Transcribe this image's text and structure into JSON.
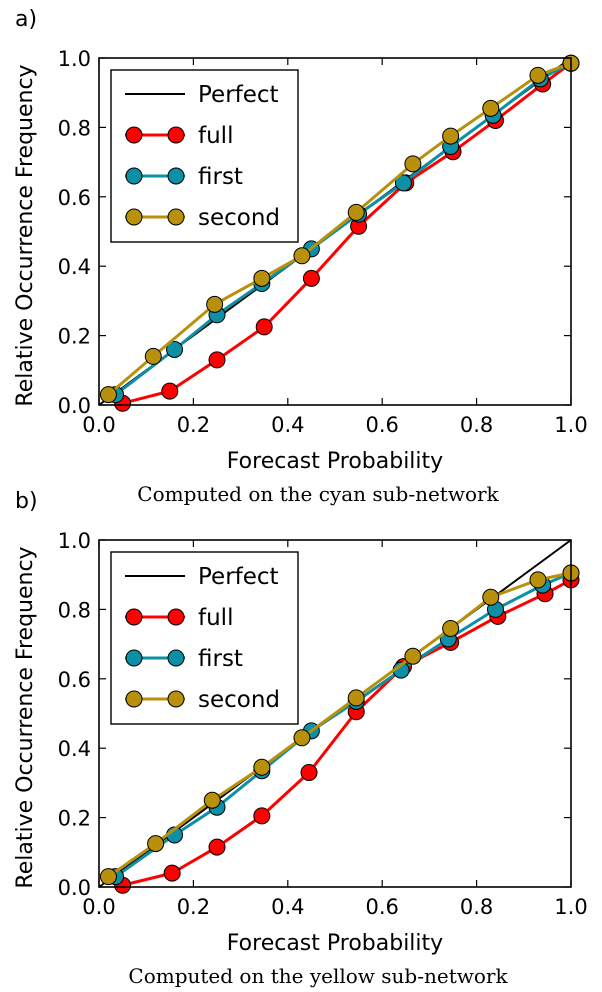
{
  "chart_data": [
    {
      "type": "line",
      "panel_label": "a)",
      "xlabel": "Forecast Probability",
      "ylabel": "Relative Occurrence Frequency",
      "caption": "Computed on the cyan sub-network",
      "xlim": [
        0.0,
        1.0
      ],
      "ylim": [
        0.0,
        1.0
      ],
      "xticks": [
        "0.0",
        "0.2",
        "0.4",
        "0.6",
        "0.8",
        "1.0"
      ],
      "yticks": [
        "0.0",
        "0.2",
        "0.4",
        "0.6",
        "0.8",
        "1.0"
      ],
      "legend_position": "top-left",
      "perfect": {
        "name": "Perfect",
        "color": "#000000",
        "x": [
          0,
          1
        ],
        "y": [
          0,
          1
        ]
      },
      "series": [
        {
          "name": "full",
          "color": "#ff0000",
          "x": [
            0.05,
            0.15,
            0.25,
            0.35,
            0.45,
            0.55,
            0.65,
            0.75,
            0.84,
            0.94,
            1.0
          ],
          "y": [
            0.005,
            0.04,
            0.13,
            0.225,
            0.365,
            0.515,
            0.64,
            0.73,
            0.82,
            0.925,
            0.985
          ]
        },
        {
          "name": "first",
          "color": "#0d8fa5",
          "x": [
            0.035,
            0.16,
            0.25,
            0.345,
            0.45,
            0.55,
            0.645,
            0.745,
            0.835,
            0.935,
            1.0
          ],
          "y": [
            0.03,
            0.16,
            0.26,
            0.35,
            0.45,
            0.55,
            0.64,
            0.745,
            0.835,
            0.94,
            0.985
          ]
        },
        {
          "name": "second",
          "color": "#b8900b",
          "x": [
            0.02,
            0.115,
            0.245,
            0.345,
            0.43,
            0.545,
            0.665,
            0.745,
            0.83,
            0.93,
            1.0
          ],
          "y": [
            0.03,
            0.14,
            0.29,
            0.365,
            0.43,
            0.555,
            0.695,
            0.775,
            0.855,
            0.95,
            0.985
          ]
        }
      ]
    },
    {
      "type": "line",
      "panel_label": "b)",
      "xlabel": "Forecast Probability",
      "ylabel": "Relative Occurrence Frequency",
      "caption": "Computed on the yellow sub-network",
      "xlim": [
        0.0,
        1.0
      ],
      "ylim": [
        0.0,
        1.0
      ],
      "xticks": [
        "0.0",
        "0.2",
        "0.4",
        "0.6",
        "0.8",
        "1.0"
      ],
      "yticks": [
        "0.0",
        "0.2",
        "0.4",
        "0.6",
        "0.8",
        "1.0"
      ],
      "legend_position": "top-left",
      "perfect": {
        "name": "Perfect",
        "color": "#000000",
        "x": [
          0,
          1
        ],
        "y": [
          0,
          1
        ]
      },
      "series": [
        {
          "name": "full",
          "color": "#ff0000",
          "x": [
            0.05,
            0.155,
            0.25,
            0.345,
            0.445,
            0.545,
            0.645,
            0.745,
            0.845,
            0.945,
            1.0
          ],
          "y": [
            0.005,
            0.04,
            0.115,
            0.205,
            0.33,
            0.505,
            0.635,
            0.705,
            0.78,
            0.845,
            0.885
          ]
        },
        {
          "name": "first",
          "color": "#0d8fa5",
          "x": [
            0.035,
            0.16,
            0.25,
            0.345,
            0.45,
            0.545,
            0.64,
            0.74,
            0.84,
            0.94,
            1.0
          ],
          "y": [
            0.03,
            0.15,
            0.23,
            0.335,
            0.45,
            0.535,
            0.625,
            0.715,
            0.8,
            0.87,
            0.905
          ]
        },
        {
          "name": "second",
          "color": "#b8900b",
          "x": [
            0.02,
            0.12,
            0.24,
            0.345,
            0.43,
            0.545,
            0.665,
            0.745,
            0.83,
            0.93,
            1.0
          ],
          "y": [
            0.03,
            0.125,
            0.25,
            0.345,
            0.43,
            0.545,
            0.665,
            0.745,
            0.835,
            0.885,
            0.905
          ]
        }
      ]
    }
  ]
}
